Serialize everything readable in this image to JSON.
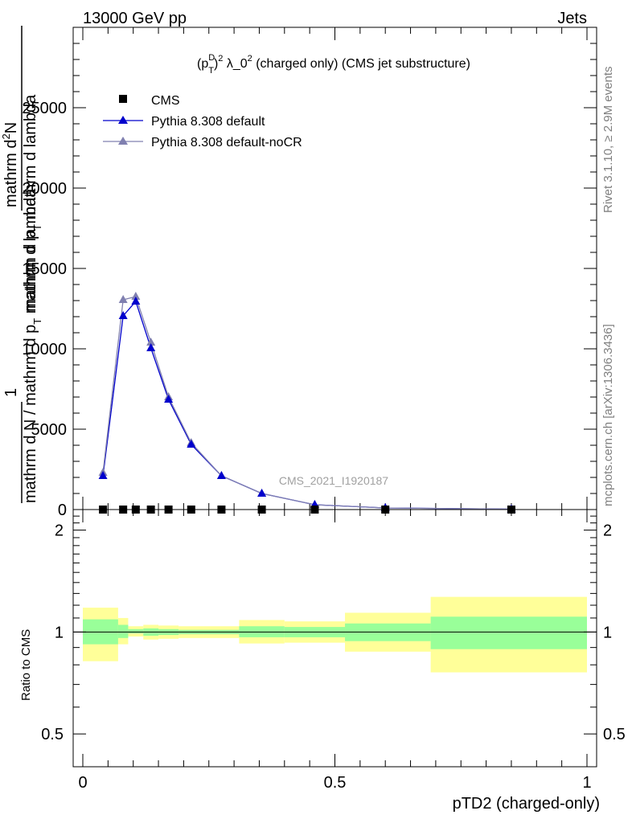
{
  "header": {
    "left": "13000 GeV pp",
    "right": "Jets"
  },
  "side": {
    "top": "Rivet 3.1.10, ≥ 2.9M events",
    "bottom": "mcplots.cern.ch [arXiv:1306.3436]"
  },
  "chart_data": [
    {
      "type": "line",
      "title": "(p_T^D)^2 λ_0^2 (charged only) (CMS jet substructure)",
      "title_parts": {
        "p": "(p",
        "sup_d": "D",
        "sub_t": "T",
        "close": ")",
        "sup_2": "2",
        "mid": " λ_0",
        "rest": " (charged only) (CMS jet substructure)"
      },
      "ylabel_lines": [
        "mathrm dN",
        "mathrm d p_T mathrm d lambda",
        "1",
        "mathrm d N / mathrm d p_T mathrm d lambda"
      ],
      "ylabel_parts": {
        "l1": "mathrm d",
        "l1sup": "2",
        "l1end": "N",
        "l2a": "mathrm d p",
        "l2sub": "T",
        "l2b": " mathrm d lambda",
        "l3": "1",
        "l4a": "mathrm d N / mathrm d p",
        "l4sub": "T",
        "l4b": " mathrm d lambda"
      },
      "xlim": [
        0,
        1
      ],
      "ylim": [
        0,
        30000
      ],
      "yticks": [
        0,
        5000,
        10000,
        15000,
        20000,
        25000
      ],
      "ytick_labels": [
        "0",
        "5000",
        "10000",
        "15000",
        "20000",
        "25000"
      ],
      "watermark": "CMS_2021_I1920187",
      "legend_position": "top-left",
      "series": [
        {
          "name": "CMS",
          "marker": "square",
          "color": "#000000",
          "x": [
            0.04,
            0.08,
            0.105,
            0.135,
            0.17,
            0.215,
            0.275,
            0.355,
            0.46,
            0.6,
            0.85
          ],
          "y": [
            0,
            0,
            0,
            0,
            0,
            0,
            0,
            0,
            0,
            0,
            0
          ]
        },
        {
          "name": "Pythia 8.308 default",
          "marker": "triangle",
          "color": "#0000cc",
          "x": [
            0.04,
            0.08,
            0.105,
            0.135,
            0.17,
            0.215,
            0.275,
            0.355,
            0.46,
            0.6,
            0.85
          ],
          "y": [
            2100,
            12050,
            12950,
            10050,
            6850,
            4050,
            2100,
            1000,
            300,
            100,
            25
          ]
        },
        {
          "name": "Pythia 8.308 default-noCR",
          "marker": "triangle",
          "color": "#8080b0",
          "x": [
            0.04,
            0.08,
            0.105,
            0.135,
            0.17,
            0.215,
            0.275,
            0.355,
            0.46,
            0.6,
            0.85
          ],
          "y": [
            2300,
            13050,
            13250,
            10400,
            7000,
            4150,
            2100,
            1000,
            300,
            100,
            25
          ]
        }
      ]
    },
    {
      "type": "area",
      "ylabel": "Ratio to CMS",
      "xlabel": "pTD2 (charged-only)",
      "xlim": [
        0,
        1
      ],
      "ylim": [
        0.4,
        2.3
      ],
      "scale": "log",
      "xticks": [
        0,
        0.5,
        1
      ],
      "xtick_labels": [
        "0",
        "0.5",
        "1"
      ],
      "yticks": [
        0.5,
        1,
        2
      ],
      "ytick_labels": [
        "0.5",
        "1",
        "2"
      ],
      "reference_line": 1,
      "bands": {
        "edges": [
          0,
          0.07,
          0.09,
          0.12,
          0.15,
          0.19,
          0.24,
          0.31,
          0.4,
          0.52,
          0.69,
          1.0
        ],
        "green_lo": [
          0.92,
          0.96,
          0.99,
          0.975,
          0.98,
          0.985,
          0.985,
          0.965,
          0.965,
          0.94,
          0.89
        ],
        "green_hi": [
          1.09,
          1.05,
          1.02,
          1.025,
          1.02,
          1.015,
          1.015,
          1.04,
          1.035,
          1.06,
          1.11
        ],
        "yellow_lo": [
          0.82,
          0.92,
          0.97,
          0.95,
          0.955,
          0.96,
          0.96,
          0.925,
          0.93,
          0.875,
          0.76
        ],
        "yellow_hi": [
          1.18,
          1.1,
          1.04,
          1.05,
          1.045,
          1.04,
          1.04,
          1.085,
          1.075,
          1.14,
          1.27
        ],
        "green_color": "#99ff99",
        "yellow_color": "#ffff99"
      }
    }
  ]
}
